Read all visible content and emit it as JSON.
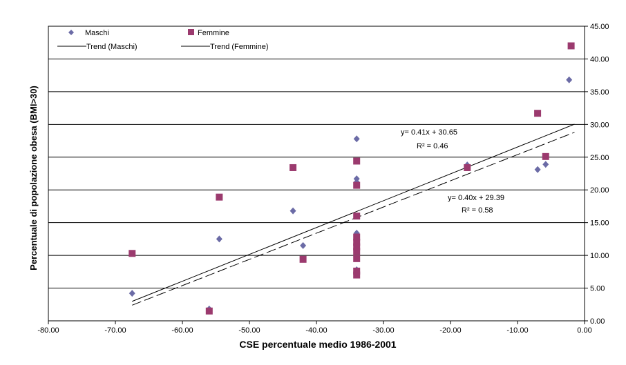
{
  "chart_data": {
    "type": "scatter",
    "xlabel": "CSE percentuale medio 1986-2001",
    "ylabel": "Percentuale di popolazione obesa (BMI>30)",
    "xlim": [
      -80,
      0
    ],
    "ylim": [
      0,
      45
    ],
    "x_ticks": [
      "-80.00",
      "-70.00",
      "-60.00",
      "-50.00",
      "-40.00",
      "-30.00",
      "-20.00",
      "-10.00",
      "0.00"
    ],
    "y_ticks": [
      "0.00",
      "5.00",
      "10.00",
      "15.00",
      "20.00",
      "25.00",
      "30.00",
      "35.00",
      "40.00",
      "45.00"
    ],
    "y_axis_side": "right",
    "grid": "horizontal",
    "legend": {
      "placement": "top-left",
      "entries": [
        "Maschi",
        "Femmine",
        "Trend (Maschi)",
        "Trend (Femmine)"
      ]
    },
    "series": [
      {
        "name": "Maschi",
        "marker": "diamond",
        "color": "#6b6ba6",
        "points": [
          [
            -67.5,
            4.2
          ],
          [
            -56.0,
            1.8
          ],
          [
            -54.5,
            12.5
          ],
          [
            -43.5,
            16.8
          ],
          [
            -42.0,
            11.5
          ],
          [
            -34.0,
            27.8
          ],
          [
            -34.0,
            21.7
          ],
          [
            -34.0,
            21.2
          ],
          [
            -34.0,
            13.4
          ],
          [
            -34.0,
            7.8
          ],
          [
            -17.5,
            23.8
          ],
          [
            -7.0,
            23.1
          ],
          [
            -5.8,
            23.9
          ],
          [
            -2.3,
            36.8
          ]
        ]
      },
      {
        "name": "Femmine",
        "marker": "square",
        "color": "#9b3a6e",
        "points": [
          [
            -67.5,
            10.3
          ],
          [
            -56.0,
            1.5
          ],
          [
            -54.5,
            18.9
          ],
          [
            -43.5,
            23.4
          ],
          [
            -42.0,
            9.4
          ],
          [
            -34.0,
            24.4
          ],
          [
            -34.0,
            20.7
          ],
          [
            -34.0,
            16.0
          ],
          [
            -34.0,
            12.8
          ],
          [
            -34.0,
            12.0
          ],
          [
            -34.0,
            11.3
          ],
          [
            -34.0,
            10.6
          ],
          [
            -34.0,
            9.5
          ],
          [
            -34.0,
            7.6
          ],
          [
            -34.0,
            7.0
          ],
          [
            -17.5,
            23.4
          ],
          [
            -7.0,
            31.7
          ],
          [
            -5.8,
            25.1
          ],
          [
            -2.0,
            42.0
          ]
        ]
      }
    ],
    "trendlines": [
      {
        "name": "Trend (Maschi)",
        "style": "solid",
        "slope": 0.41,
        "intercept": 30.65,
        "x_range": [
          -67.5,
          -1.5
        ],
        "equation": "y= 0.41x + 30.65",
        "r2": "R² = 0.46"
      },
      {
        "name": "Trend (Femmine)",
        "style": "dashed",
        "slope": 0.4,
        "intercept": 29.39,
        "x_range": [
          -67.5,
          -1.5
        ],
        "equation": "y= 0.40x + 29.39",
        "r2": "R² = 0.58"
      }
    ]
  }
}
